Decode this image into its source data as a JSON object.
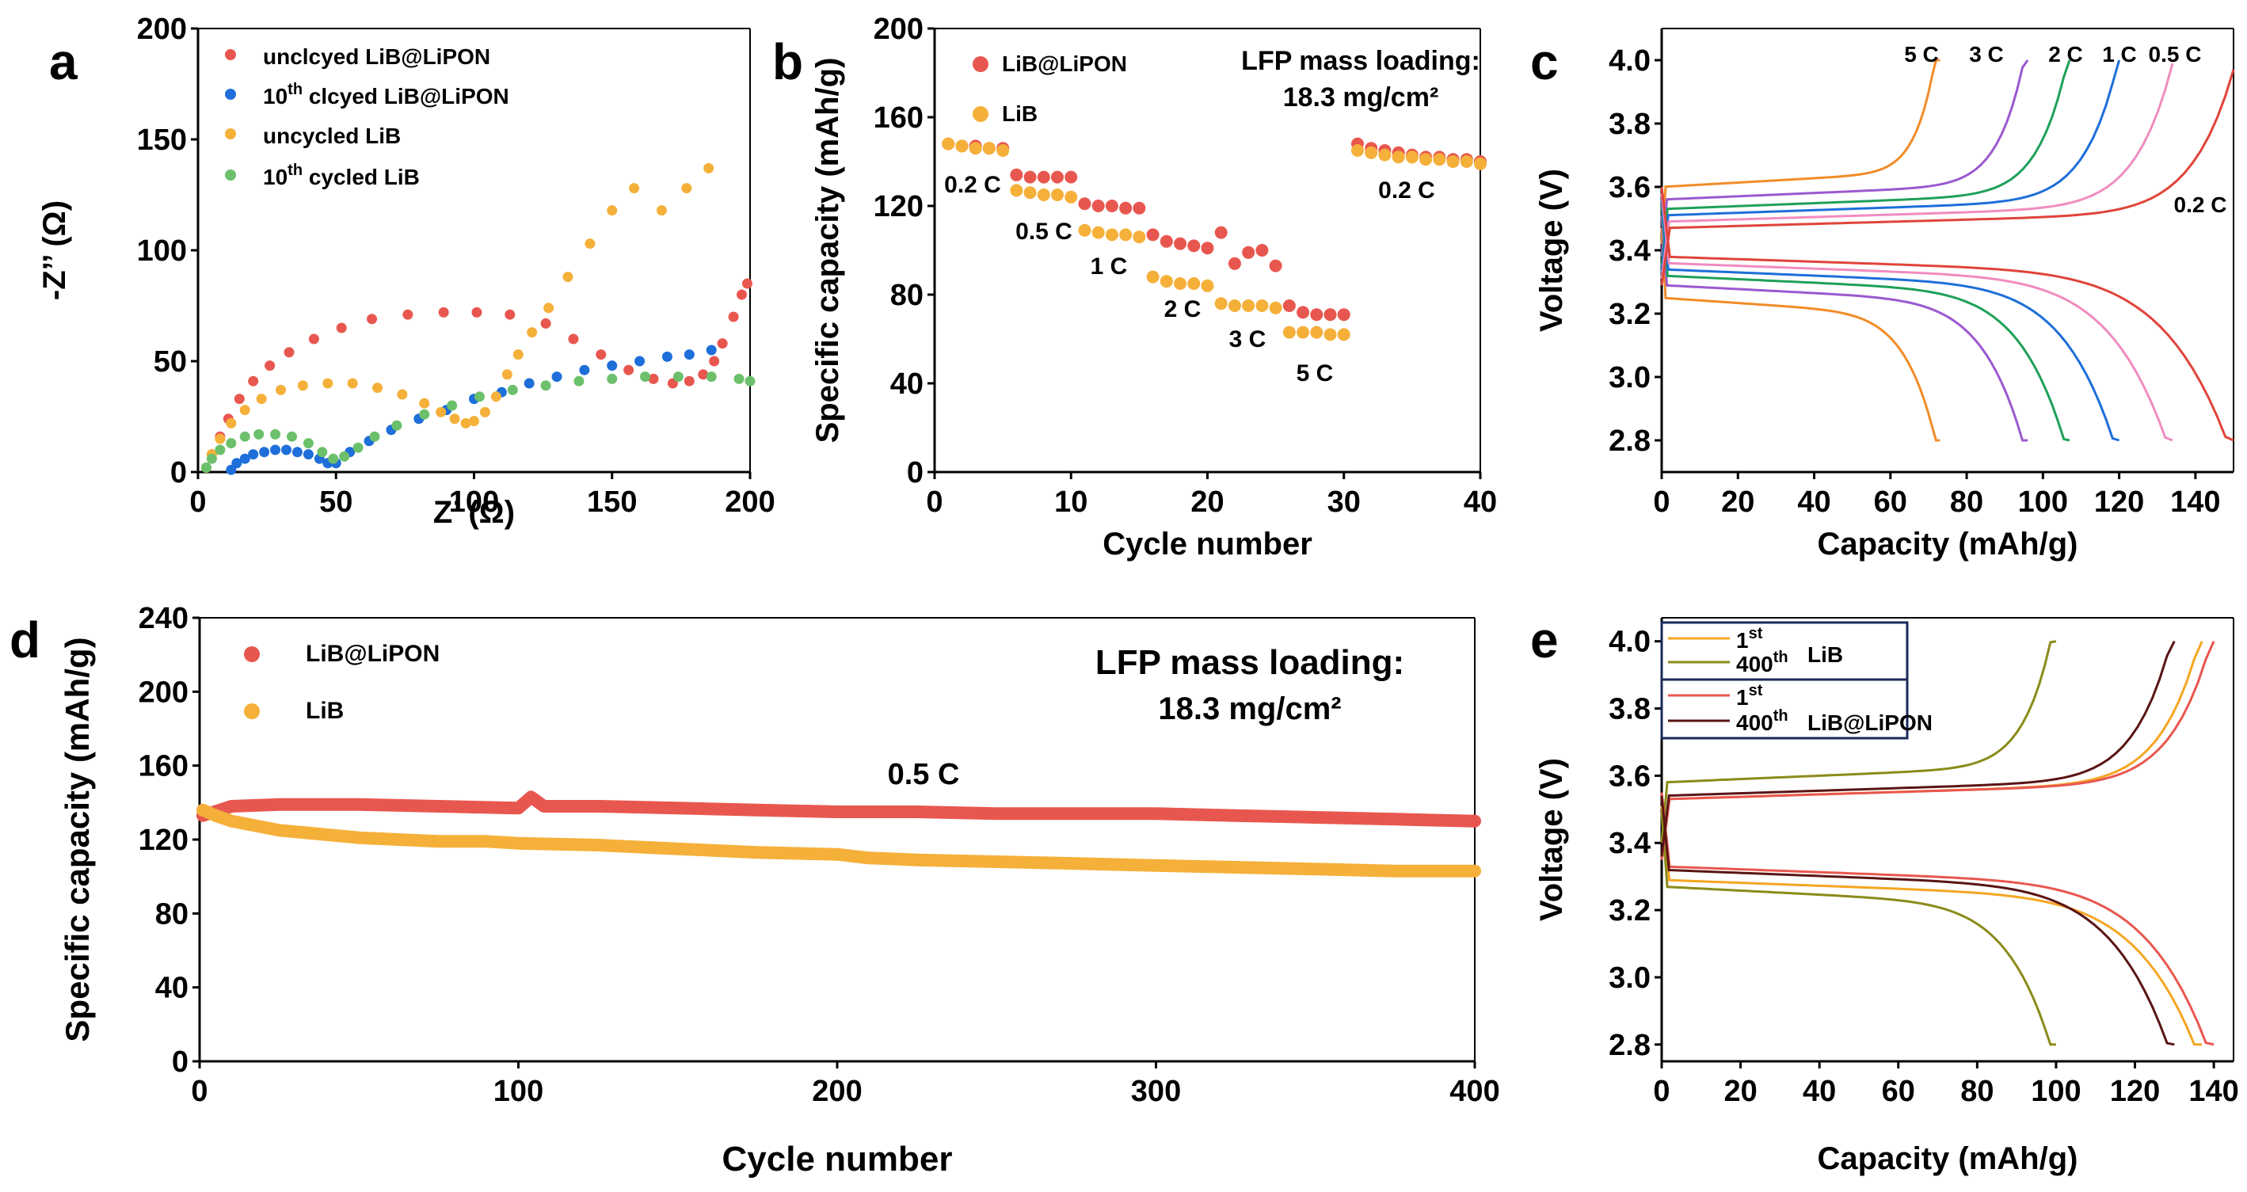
{
  "chart_data": [
    {
      "panel": "a",
      "type": "scatter",
      "xlabel": "Z’ (Ω)",
      "ylabel": "-Z’’ (Ω)",
      "xlim": [
        0,
        200
      ],
      "ylim": [
        0,
        200
      ],
      "xticks": [
        "0",
        "50",
        "100",
        "150",
        "200"
      ],
      "yticks": [
        "0",
        "50",
        "100",
        "150",
        "200"
      ],
      "series": [
        {
          "name": "unclcyed LiB@LiPON",
          "color": "#e8574f",
          "x": [
            3,
            5,
            8,
            11,
            15,
            20,
            26,
            33,
            42,
            52,
            63,
            76,
            89,
            101,
            113,
            126,
            136,
            146,
            156,
            165,
            172,
            178,
            183,
            187,
            190,
            194,
            197,
            199
          ],
          "y": [
            2,
            8,
            16,
            24,
            33,
            41,
            48,
            54,
            60,
            65,
            69,
            71,
            72,
            72,
            71,
            67,
            60,
            53,
            46,
            42,
            40,
            41,
            44,
            50,
            58,
            70,
            80,
            85
          ]
        },
        {
          "name": "10th clcyed LiB@LiPON",
          "color": "#1e6fd9",
          "x": [
            12,
            14,
            17,
            20,
            24,
            28,
            32,
            36,
            40,
            44,
            47,
            50,
            55,
            62,
            70,
            80,
            90,
            100,
            110,
            120,
            130,
            140,
            150,
            160,
            170,
            178,
            186
          ],
          "y": [
            1,
            4,
            6,
            8,
            9,
            10,
            10,
            9,
            8,
            6,
            4,
            4,
            9,
            14,
            19,
            24,
            28,
            33,
            36,
            40,
            43,
            46,
            48,
            50,
            52,
            53,
            55
          ]
        },
        {
          "name": "uncycled LiB",
          "color": "#f5b03a",
          "x": [
            3,
            5,
            8,
            12,
            17,
            23,
            30,
            38,
            47,
            56,
            65,
            74,
            82,
            88,
            93,
            97,
            100,
            104,
            108,
            112,
            116,
            121,
            127,
            134,
            142,
            150,
            158,
            168,
            177,
            185
          ],
          "y": [
            2,
            8,
            15,
            22,
            28,
            33,
            37,
            39,
            40,
            40,
            38,
            35,
            31,
            27,
            24,
            22,
            23,
            27,
            34,
            44,
            53,
            63,
            74,
            88,
            103,
            118,
            128,
            118,
            128,
            137
          ]
        },
        {
          "name": "10th cycled LiB",
          "color": "#6cc06b",
          "x": [
            3,
            5,
            8,
            12,
            17,
            22,
            28,
            34,
            40,
            45,
            49,
            53,
            58,
            64,
            72,
            82,
            92,
            102,
            114,
            126,
            138,
            150,
            162,
            174,
            186,
            196,
            200
          ],
          "y": [
            2,
            6,
            10,
            13,
            16,
            17,
            17,
            16,
            13,
            9,
            6,
            7,
            11,
            16,
            21,
            26,
            30,
            34,
            37,
            39,
            41,
            42,
            43,
            43,
            43,
            42,
            41
          ]
        }
      ]
    },
    {
      "panel": "b",
      "type": "scatter",
      "title": "LFP mass loading:",
      "subtitle": "18.3 mg/cm²",
      "xlabel": "Cycle number",
      "ylabel": "Specific capacity (mAh/g)",
      "xlim": [
        0,
        40
      ],
      "ylim": [
        0,
        200
      ],
      "xticks": [
        "0",
        "10",
        "20",
        "30",
        "40"
      ],
      "yticks": [
        "0",
        "40",
        "80",
        "120",
        "160",
        "200"
      ],
      "annotations": [
        "0.2 C",
        "0.5 C",
        "1 C",
        "2 C",
        "3 C",
        "5 C",
        "0.2 C"
      ],
      "series": [
        {
          "name": "LiB@LiPON",
          "color": "#e8574f",
          "x": [
            1,
            2,
            3,
            4,
            5,
            6,
            7,
            8,
            9,
            10,
            11,
            12,
            13,
            14,
            15,
            16,
            17,
            18,
            19,
            20,
            21,
            22,
            23,
            24,
            25,
            26,
            27,
            28,
            29,
            30,
            31,
            32,
            33,
            34,
            35,
            36,
            37,
            38,
            39,
            40
          ],
          "y": [
            148,
            147,
            147,
            146,
            146,
            134,
            133,
            133,
            133,
            133,
            121,
            120,
            120,
            119,
            119,
            107,
            104,
            103,
            102,
            101,
            108,
            94,
            99,
            100,
            93,
            75,
            72,
            71,
            71,
            71,
            148,
            146,
            145,
            144,
            143,
            142,
            142,
            141,
            141,
            140
          ]
        },
        {
          "name": "LiB",
          "color": "#f5b03a",
          "x": [
            1,
            2,
            3,
            4,
            5,
            6,
            7,
            8,
            9,
            10,
            11,
            12,
            13,
            14,
            15,
            16,
            17,
            18,
            19,
            20,
            21,
            22,
            23,
            24,
            25,
            26,
            27,
            28,
            29,
            30,
            31,
            32,
            33,
            34,
            35,
            36,
            37,
            38,
            39,
            40
          ],
          "y": [
            148,
            147,
            146,
            146,
            145,
            127,
            126,
            125,
            125,
            124,
            109,
            108,
            107,
            107,
            106,
            88,
            86,
            85,
            85,
            84,
            76,
            75,
            75,
            75,
            74,
            63,
            63,
            63,
            62,
            62,
            145,
            144,
            143,
            142,
            142,
            141,
            141,
            140,
            140,
            139
          ]
        }
      ]
    },
    {
      "panel": "c",
      "type": "line",
      "xlabel": "Capacity (mAh/g)",
      "ylabel": "Voltage (V)",
      "xlim": [
        0,
        150
      ],
      "ylim": [
        2.7,
        4.1
      ],
      "xticks": [
        "0",
        "20",
        "40",
        "60",
        "80",
        "100",
        "120",
        "140"
      ],
      "yticks": [
        "2.8",
        "3.0",
        "3.2",
        "3.4",
        "3.6",
        "3.8",
        "4.0"
      ],
      "series": [
        {
          "name": "5 C",
          "color": "#f28c28",
          "charge_end": 73,
          "discharge_end": 73,
          "charge_plateau": 3.6,
          "discharge_plateau": 3.25
        },
        {
          "name": "3 C",
          "color": "#9b59d0",
          "charge_end": 96,
          "discharge_end": 96,
          "charge_plateau": 3.56,
          "discharge_plateau": 3.29
        },
        {
          "name": "2 C",
          "color": "#1fa05a",
          "charge_end": 107,
          "discharge_end": 107,
          "charge_plateau": 3.53,
          "discharge_plateau": 3.32
        },
        {
          "name": "1 C",
          "color": "#1e6fd9",
          "charge_end": 120,
          "discharge_end": 120,
          "charge_plateau": 3.51,
          "discharge_plateau": 3.34
        },
        {
          "name": "0.5 C",
          "color": "#f08cc0",
          "charge_end": 134,
          "discharge_end": 134,
          "charge_plateau": 3.49,
          "discharge_plateau": 3.36
        },
        {
          "name": "0.2 C",
          "color": "#e0443a",
          "charge_end": 150,
          "discharge_end": 150,
          "charge_plateau": 3.47,
          "discharge_plateau": 3.38
        }
      ]
    },
    {
      "panel": "d",
      "type": "scatter",
      "title": "LFP mass loading:",
      "subtitle": "18.3 mg/cm²",
      "annotation": "0.5 C",
      "xlabel": "Cycle number",
      "ylabel": "Specific capacity (mAh/g)",
      "xlim": [
        0,
        400
      ],
      "ylim": [
        0,
        240
      ],
      "xticks": [
        "0",
        "100",
        "200",
        "300",
        "400"
      ],
      "yticks": [
        "0",
        "40",
        "80",
        "120",
        "160",
        "200",
        "240"
      ],
      "series": [
        {
          "name": "LiB@LiPON",
          "color": "#e8574f",
          "x": [
            1,
            10,
            25,
            50,
            75,
            100,
            104,
            108,
            125,
            150,
            175,
            200,
            225,
            250,
            275,
            300,
            325,
            350,
            375,
            400
          ],
          "y": [
            133,
            138,
            139,
            139,
            138,
            137,
            143,
            138,
            138,
            137,
            136,
            135,
            135,
            134,
            134,
            134,
            133,
            132,
            131,
            130
          ]
        },
        {
          "name": "LiB",
          "color": "#f5b03a",
          "x": [
            1,
            5,
            10,
            25,
            50,
            75,
            90,
            100,
            125,
            150,
            175,
            200,
            210,
            225,
            250,
            275,
            300,
            325,
            350,
            375,
            400
          ],
          "y": [
            136,
            133,
            130,
            125,
            121,
            119,
            119,
            118,
            117,
            115,
            113,
            112,
            110,
            109,
            108,
            107,
            106,
            105,
            104,
            103,
            103
          ]
        }
      ]
    },
    {
      "panel": "e",
      "type": "line",
      "xlabel": "Capacity (mAh/g)",
      "ylabel": "Voltage (V)",
      "xlim": [
        0,
        145
      ],
      "ylim": [
        2.75,
        4.07
      ],
      "xticks": [
        "0",
        "20",
        "40",
        "60",
        "80",
        "100",
        "120",
        "140"
      ],
      "yticks": [
        "2.8",
        "3.0",
        "3.2",
        "3.4",
        "3.6",
        "3.8",
        "4.0"
      ],
      "legend_groups": [
        {
          "label": "LiB",
          "entries": [
            {
              "base": "1",
              "sup": "st"
            },
            {
              "base": "400",
              "sup": "th"
            }
          ]
        },
        {
          "label": "LiB@LiPON",
          "entries": [
            {
              "base": "1",
              "sup": "st"
            },
            {
              "base": "400",
              "sup": "th"
            }
          ]
        }
      ],
      "series": [
        {
          "name": "1st LiB",
          "color": "#f5a623",
          "charge_end": 137,
          "discharge_end": 138,
          "charge_plateau": 3.53,
          "discharge_plateau": 3.29
        },
        {
          "name": "400th LiB",
          "color": "#8b8b1a",
          "charge_end": 100,
          "discharge_end": 100,
          "charge_plateau": 3.58,
          "discharge_plateau": 3.27
        },
        {
          "name": "1st LiB@LiPON",
          "color": "#e8574f",
          "charge_end": 140,
          "discharge_end": 140,
          "charge_plateau": 3.53,
          "discharge_plateau": 3.33
        },
        {
          "name": "400th LiB@LiPON",
          "color": "#5a1414",
          "charge_end": 130,
          "discharge_end": 130,
          "charge_plateau": 3.54,
          "discharge_plateau": 3.32
        }
      ]
    }
  ],
  "figure": {
    "panel_labels": [
      "a",
      "b",
      "c",
      "d",
      "e"
    ],
    "b_legend": [
      "LiB@LiPON",
      "LiB"
    ],
    "c_rate_labels": [
      "5 C",
      "3 C",
      "2 C",
      "1 C",
      "0.5 C",
      "0.2 C"
    ],
    "d_legend": [
      "LiB@LiPON",
      "LiB"
    ],
    "a_legend": [
      {
        "pre": "unclcyed LiB@LiPON",
        "sup": "",
        "post": ""
      },
      {
        "pre": "10",
        "sup": "th",
        "post": " clcyed LiB@LiPON"
      },
      {
        "pre": "uncycled LiB",
        "sup": "",
        "post": ""
      },
      {
        "pre": "10",
        "sup": "th",
        "post": " cycled LiB"
      }
    ]
  }
}
